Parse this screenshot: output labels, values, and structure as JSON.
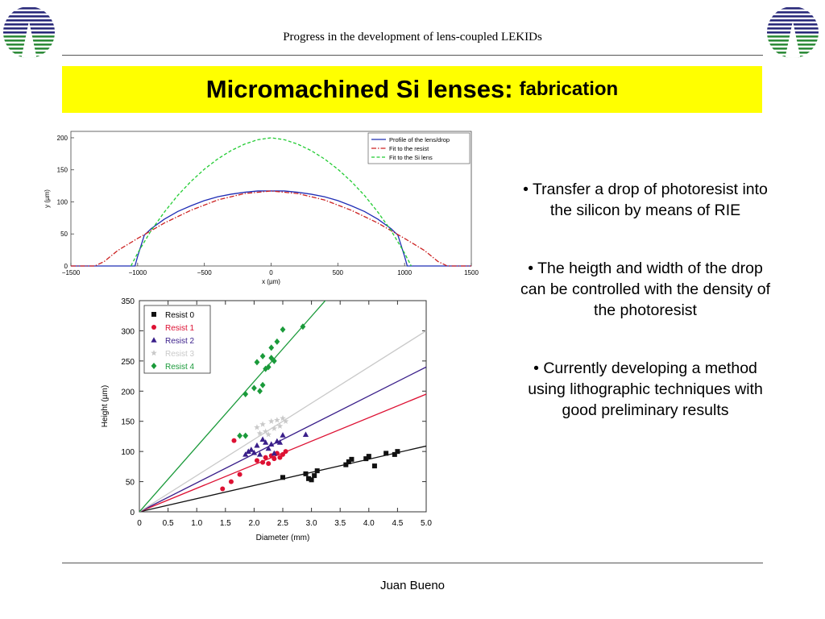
{
  "header": {
    "title": "Progress in the development of lens-coupled LEKIDs"
  },
  "banner": {
    "title_main": "Micromachined Si lenses:",
    "title_sub": "fabrication",
    "bg_color": "#ffff00"
  },
  "bullets": [
    "• Transfer a drop of photoresist into the silicon by means of RIE",
    "• The heigth and width of the drop can be controlled with the density of the photoresist",
    "• Currently developing a method using lithographic techniques with good preliminary results"
  ],
  "footer": {
    "author": "Juan Bueno"
  },
  "logo": {
    "icon": "institution-logo-icon",
    "colors": [
      "#2a2a7a",
      "#2e8b3a"
    ]
  },
  "chart_data": [
    {
      "type": "line",
      "title": "",
      "xlabel": "x (µm)",
      "ylabel": "y (µm)",
      "xlim": [
        -1500,
        1500
      ],
      "ylim": [
        0,
        210
      ],
      "xticks": [
        -1500,
        -1000,
        -500,
        0,
        500,
        1000,
        1500
      ],
      "yticks": [
        0,
        50,
        100,
        150,
        200
      ],
      "xtick_labels": [
        "−1500",
        "−1000",
        "−500",
        "0",
        "500",
        "1000",
        "1500"
      ],
      "ytick_labels": [
        "0",
        "50",
        "100",
        "150",
        "200"
      ],
      "legend_position": "top-right",
      "series": [
        {
          "name": "Profile of the lens/drop",
          "color": "#1f2db5",
          "style": "solid",
          "x": [
            -1500,
            -1040,
            -1020,
            -1000,
            -950,
            -900,
            -800,
            -700,
            -600,
            -500,
            -400,
            -300,
            -200,
            -100,
            0,
            100,
            200,
            300,
            400,
            500,
            600,
            700,
            800,
            900,
            950,
            1000,
            1020,
            1040,
            1500
          ],
          "y": [
            0,
            0,
            0,
            15,
            48,
            58,
            73,
            85,
            94,
            102,
            108,
            112,
            115,
            117,
            117,
            117,
            115,
            112,
            108,
            102,
            94,
            85,
            73,
            58,
            48,
            15,
            0,
            0,
            0
          ]
        },
        {
          "name": "Fit to the resist",
          "color": "#cc2222",
          "style": "dashdot",
          "x": [
            -1500,
            -1320,
            -1250,
            -1150,
            -1000,
            -800,
            -600,
            -400,
            -200,
            0,
            200,
            400,
            600,
            800,
            1000,
            1150,
            1250,
            1320,
            1500
          ],
          "y": [
            0,
            0,
            7,
            24,
            43,
            67,
            87,
            103,
            113,
            117,
            113,
            103,
            87,
            67,
            43,
            24,
            7,
            0,
            0
          ]
        },
        {
          "name": "Fit to the Si lens",
          "color": "#22cc33",
          "style": "dashed",
          "x": [
            -1050,
            -1000,
            -900,
            -800,
            -700,
            -600,
            -500,
            -400,
            -300,
            -200,
            -100,
            0,
            100,
            200,
            300,
            400,
            500,
            600,
            700,
            800,
            900,
            1000,
            1050
          ],
          "y": [
            0,
            20,
            55,
            84,
            110,
            132,
            151,
            167,
            180,
            190,
            197,
            200,
            197,
            190,
            180,
            167,
            151,
            132,
            110,
            84,
            55,
            20,
            0
          ]
        }
      ]
    },
    {
      "type": "scatter",
      "title": "",
      "xlabel": "Diameter (mm)",
      "ylabel": "Height (µm)",
      "xlim": [
        0,
        5
      ],
      "ylim": [
        0,
        350
      ],
      "xticks": [
        0,
        0.5,
        1,
        1.5,
        2,
        2.5,
        3,
        3.5,
        4,
        4.5,
        5
      ],
      "yticks": [
        0,
        50,
        100,
        150,
        200,
        250,
        300,
        350
      ],
      "xtick_labels": [
        "0",
        "0.5",
        "1.0",
        "1.5",
        "2.0",
        "2.5",
        "3.0",
        "3.5",
        "4.0",
        "4.5",
        "5.0"
      ],
      "ytick_labels": [
        "0",
        "50",
        "100",
        "150",
        "200",
        "250",
        "300",
        "350"
      ],
      "legend_position": "top-left",
      "series": [
        {
          "name": "Resist 0",
          "color": "#111111",
          "marker": "square",
          "fit_slope": 21.8,
          "x": [
            2.5,
            2.9,
            2.95,
            3.0,
            3.05,
            3.1,
            3.6,
            3.65,
            3.7,
            3.95,
            4.0,
            4.1,
            4.3,
            4.45,
            4.5
          ],
          "y": [
            57,
            63,
            55,
            53,
            60,
            68,
            78,
            83,
            87,
            88,
            92,
            76,
            97,
            95,
            100
          ]
        },
        {
          "name": "Resist 1",
          "color": "#dd1133",
          "marker": "circle",
          "fit_slope": 39,
          "x": [
            1.45,
            1.6,
            1.65,
            1.75,
            2.05,
            2.15,
            2.2,
            2.25,
            2.3,
            2.35,
            2.4,
            2.45,
            2.5,
            2.55
          ],
          "y": [
            38,
            50,
            118,
            62,
            85,
            82,
            90,
            80,
            93,
            88,
            97,
            90,
            95,
            100
          ]
        },
        {
          "name": "Resist 2",
          "color": "#3a1f8a",
          "marker": "triangle",
          "fit_slope": 48,
          "x": [
            1.85,
            1.9,
            1.95,
            2.0,
            2.05,
            2.1,
            2.15,
            2.2,
            2.25,
            2.3,
            2.35,
            2.4,
            2.45,
            2.5,
            2.9
          ],
          "y": [
            95,
            100,
            103,
            98,
            110,
            95,
            120,
            115,
            105,
            112,
            97,
            117,
            115,
            127,
            128
          ]
        },
        {
          "name": "Resist 3",
          "color": "#c9c9c9",
          "marker": "star",
          "fit_slope": 60,
          "x": [
            2.05,
            2.1,
            2.15,
            2.2,
            2.25,
            2.3,
            2.35,
            2.4,
            2.45,
            2.5,
            2.55
          ],
          "y": [
            140,
            130,
            145,
            133,
            128,
            150,
            138,
            152,
            142,
            155,
            150
          ]
        },
        {
          "name": "Resist 4",
          "color": "#1a9a3a",
          "marker": "diamond",
          "fit_slope": 108,
          "x": [
            1.75,
            1.85,
            1.85,
            2.0,
            2.05,
            2.1,
            2.15,
            2.15,
            2.2,
            2.25,
            2.3,
            2.3,
            2.35,
            2.4,
            2.5,
            2.85
          ],
          "y": [
            126,
            126,
            195,
            205,
            248,
            200,
            258,
            210,
            237,
            240,
            272,
            255,
            250,
            282,
            302,
            307
          ]
        }
      ]
    }
  ]
}
